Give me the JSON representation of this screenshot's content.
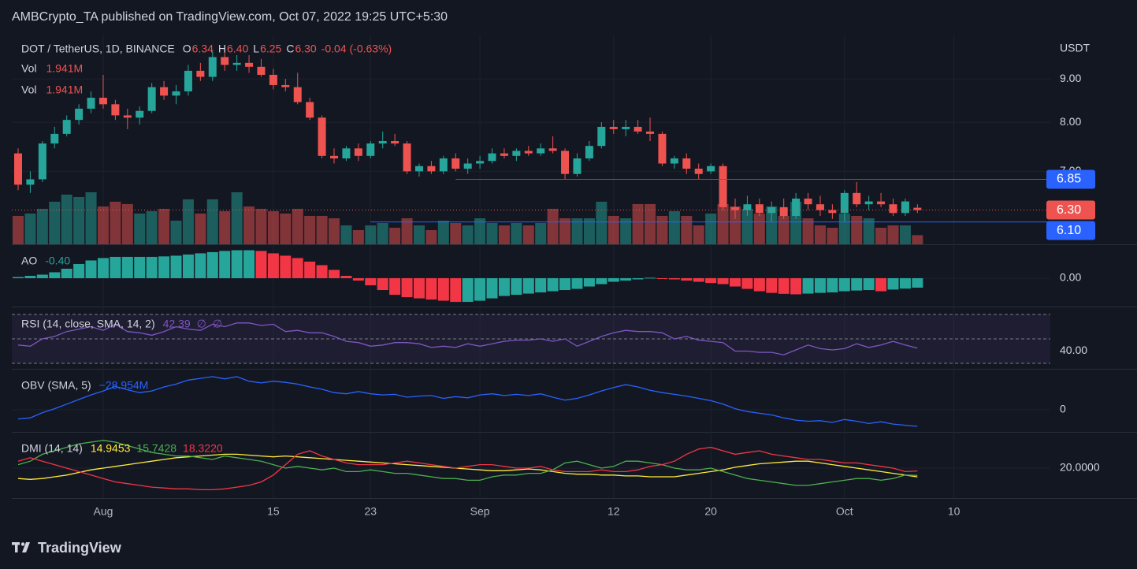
{
  "header": {
    "title": "AMBCrypto_TA published on TradingView.com, Oct 07, 2022 19:25 UTC+5:30"
  },
  "footer": {
    "brand": "TradingView"
  },
  "chart_data": [
    {
      "type": "candlestick",
      "title": "DOT / TetherUS, 1D, BINANCE",
      "legend_keys": [
        "O",
        "H",
        "L",
        "C"
      ],
      "value_labels": {
        "open": "6.34",
        "high": "6.40",
        "low": "6.25",
        "close": "6.30"
      },
      "change": "-0.04 (-0.63%)",
      "unit": "USDT",
      "up_color": "#26a69a",
      "down_color": "#ef5350",
      "log_scale": true,
      "grid": true,
      "ylim": [
        5.74,
        10.02
      ],
      "yticks": [
        {
          "value": 9,
          "label": "9.00"
        },
        {
          "value": 8,
          "label": "8.00"
        },
        {
          "value": 7,
          "label": "7.00"
        }
      ],
      "xlim": [
        "2022-07-25",
        "2022-10-18"
      ],
      "xticks": [
        {
          "value": "2022-08-01",
          "label": "Aug"
        },
        {
          "value": "2022-08-15",
          "label": "15"
        },
        {
          "value": "2022-08-23",
          "label": "23"
        },
        {
          "value": "2022-09-01",
          "label": "Sep"
        },
        {
          "value": "2022-09-12",
          "label": "12"
        },
        {
          "value": "2022-09-20",
          "label": "20"
        },
        {
          "value": "2022-10-01",
          "label": "Oct"
        },
        {
          "value": "2022-10-10",
          "label": "10"
        }
      ],
      "x": [
        "2022-07-25",
        "2022-07-26",
        "2022-07-27",
        "2022-07-28",
        "2022-07-29",
        "2022-07-30",
        "2022-07-31",
        "2022-08-01",
        "2022-08-02",
        "2022-08-03",
        "2022-08-04",
        "2022-08-05",
        "2022-08-06",
        "2022-08-07",
        "2022-08-08",
        "2022-08-09",
        "2022-08-10",
        "2022-08-11",
        "2022-08-12",
        "2022-08-13",
        "2022-08-14",
        "2022-08-15",
        "2022-08-16",
        "2022-08-17",
        "2022-08-18",
        "2022-08-19",
        "2022-08-20",
        "2022-08-21",
        "2022-08-22",
        "2022-08-23",
        "2022-08-24",
        "2022-08-25",
        "2022-08-26",
        "2022-08-27",
        "2022-08-28",
        "2022-08-29",
        "2022-08-30",
        "2022-08-31",
        "2022-09-01",
        "2022-09-02",
        "2022-09-03",
        "2022-09-04",
        "2022-09-05",
        "2022-09-06",
        "2022-09-07",
        "2022-09-08",
        "2022-09-09",
        "2022-09-10",
        "2022-09-11",
        "2022-09-12",
        "2022-09-13",
        "2022-09-14",
        "2022-09-15",
        "2022-09-16",
        "2022-09-17",
        "2022-09-18",
        "2022-09-19",
        "2022-09-20",
        "2022-09-21",
        "2022-09-22",
        "2022-09-23",
        "2022-09-24",
        "2022-09-25",
        "2022-09-26",
        "2022-09-27",
        "2022-09-28",
        "2022-09-29",
        "2022-09-30",
        "2022-10-01",
        "2022-10-02",
        "2022-10-03",
        "2022-10-04",
        "2022-10-05",
        "2022-10-06",
        "2022-10-07"
      ],
      "open": [
        7.35,
        6.75,
        6.85,
        7.55,
        7.75,
        8.05,
        8.3,
        8.55,
        8.4,
        8.15,
        8.1,
        8.25,
        8.8,
        8.6,
        8.7,
        9.2,
        9.05,
        9.55,
        9.35,
        9.4,
        9.3,
        9.1,
        8.85,
        8.8,
        8.45,
        8.1,
        7.3,
        7.25,
        7.45,
        7.3,
        7.55,
        7.6,
        7.55,
        7.0,
        7.1,
        7.0,
        7.25,
        7.05,
        7.15,
        7.2,
        7.35,
        7.3,
        7.4,
        7.35,
        7.45,
        7.4,
        6.95,
        7.25,
        7.5,
        7.9,
        7.85,
        7.9,
        7.8,
        7.75,
        7.15,
        7.25,
        7.05,
        7.0,
        7.1,
        6.35,
        6.3,
        6.4,
        6.25,
        6.35,
        6.2,
        6.5,
        6.4,
        6.3,
        6.25,
        6.6,
        6.4,
        6.45,
        6.4,
        6.25,
        6.34
      ],
      "high": [
        7.45,
        7.0,
        7.6,
        7.9,
        8.15,
        8.4,
        8.7,
        9.1,
        8.5,
        8.3,
        8.35,
        8.9,
        8.95,
        8.85,
        9.35,
        9.4,
        9.7,
        9.75,
        9.6,
        9.6,
        9.5,
        9.25,
        9.0,
        9.15,
        8.55,
        8.15,
        7.45,
        7.5,
        7.55,
        7.6,
        7.8,
        7.75,
        7.6,
        7.15,
        7.2,
        7.3,
        7.35,
        7.25,
        7.3,
        7.45,
        7.45,
        7.45,
        7.5,
        7.55,
        7.7,
        7.45,
        7.35,
        7.6,
        8.0,
        8.05,
        8.05,
        8.05,
        8.1,
        7.8,
        7.3,
        7.35,
        7.15,
        7.15,
        7.15,
        6.5,
        6.55,
        6.5,
        6.45,
        6.5,
        6.6,
        6.6,
        6.55,
        6.4,
        6.65,
        6.8,
        6.55,
        6.6,
        6.5,
        6.5,
        6.4
      ],
      "low": [
        6.65,
        6.6,
        6.8,
        7.45,
        7.7,
        7.95,
        8.2,
        8.3,
        8.05,
        7.85,
        7.95,
        8.2,
        8.5,
        8.4,
        8.6,
        8.95,
        8.95,
        9.2,
        9.2,
        9.15,
        9.05,
        8.75,
        8.7,
        8.4,
        8.05,
        7.25,
        7.15,
        7.2,
        7.2,
        7.25,
        7.45,
        7.5,
        6.95,
        6.9,
        6.95,
        6.95,
        7.0,
        6.95,
        7.05,
        7.15,
        7.25,
        7.2,
        7.3,
        7.3,
        7.35,
        6.85,
        6.9,
        7.2,
        7.45,
        7.75,
        7.7,
        7.75,
        7.6,
        7.1,
        7.05,
        6.95,
        6.85,
        6.95,
        6.3,
        6.15,
        6.2,
        6.2,
        6.1,
        6.15,
        6.15,
        6.3,
        6.2,
        6.15,
        6.1,
        6.35,
        6.3,
        6.35,
        6.2,
        6.2,
        6.25
      ],
      "close": [
        6.75,
        6.85,
        7.55,
        7.75,
        8.05,
        8.3,
        8.55,
        8.4,
        8.15,
        8.1,
        8.25,
        8.8,
        8.6,
        8.7,
        9.2,
        9.05,
        9.55,
        9.35,
        9.4,
        9.3,
        9.1,
        8.85,
        8.8,
        8.45,
        8.1,
        7.3,
        7.25,
        7.45,
        7.3,
        7.55,
        7.6,
        7.55,
        7.0,
        7.1,
        7.0,
        7.25,
        7.05,
        7.15,
        7.2,
        7.35,
        7.3,
        7.4,
        7.35,
        7.45,
        7.4,
        6.95,
        7.25,
        7.5,
        7.9,
        7.85,
        7.9,
        7.8,
        7.75,
        7.15,
        7.25,
        7.05,
        6.95,
        7.1,
        6.35,
        6.3,
        6.4,
        6.25,
        6.35,
        6.2,
        6.5,
        6.4,
        6.3,
        6.25,
        6.6,
        6.4,
        6.45,
        6.4,
        6.25,
        6.45,
        6.3
      ],
      "hlines": [
        {
          "value": 6.85,
          "label": "6.85",
          "from": "2022-08-30",
          "color": "#2962ff"
        },
        {
          "value": 6.1,
          "label": "6.10",
          "from": "2022-08-23",
          "color": "#2962ff"
        }
      ],
      "volume": {
        "name": "Vol",
        "value_label": "1.941M",
        "ylim": [
          0,
          43.3
        ],
        "values": [
          6.0,
          6.5,
          7.5,
          9.0,
          10.5,
          10.0,
          11.0,
          8.0,
          9.0,
          8.5,
          6.5,
          7.0,
          7.5,
          5.0,
          9.5,
          6.5,
          9.5,
          7.0,
          11.0,
          8.0,
          7.5,
          7.0,
          6.5,
          7.5,
          6.0,
          6.0,
          5.5,
          4.0,
          3.0,
          4.0,
          4.5,
          3.5,
          5.5,
          4.0,
          3.0,
          5.0,
          4.5,
          4.0,
          5.5,
          4.5,
          4.0,
          4.5,
          4.0,
          4.5,
          7.5,
          5.5,
          5.5,
          5.5,
          9.0,
          6.0,
          5.5,
          8.5,
          8.5,
          6.0,
          7.0,
          6.0,
          4.0,
          6.5,
          8.5,
          8.0,
          7.5,
          6.5,
          8.0,
          6.0,
          9.0,
          5.5,
          4.0,
          3.5,
          6.5,
          6.0,
          5.5,
          3.5,
          4.0,
          4.0,
          1.941
        ]
      }
    },
    {
      "type": "bar",
      "title": "AO",
      "value_label": "-0.40",
      "up_color": "#26a69a",
      "down_color": "#f23645",
      "ylim": [
        -1.23,
        1.43
      ],
      "yticks": [
        {
          "value": 0,
          "label": "0.00"
        }
      ],
      "values": [
        0.05,
        0.1,
        0.15,
        0.25,
        0.4,
        0.6,
        0.75,
        0.85,
        0.9,
        0.9,
        0.9,
        0.9,
        0.92,
        0.95,
        1.0,
        1.05,
        1.1,
        1.15,
        1.18,
        1.18,
        1.15,
        1.05,
        0.95,
        0.85,
        0.7,
        0.55,
        0.35,
        0.1,
        -0.1,
        -0.3,
        -0.5,
        -0.7,
        -0.8,
        -0.85,
        -0.9,
        -0.95,
        -1.0,
        -1.0,
        -0.95,
        -0.85,
        -0.75,
        -0.7,
        -0.65,
        -0.6,
        -0.55,
        -0.5,
        -0.45,
        -0.35,
        -0.25,
        -0.15,
        -0.1,
        -0.05,
        0.02,
        0.0,
        -0.05,
        -0.1,
        -0.15,
        -0.2,
        -0.25,
        -0.35,
        -0.45,
        -0.55,
        -0.62,
        -0.66,
        -0.68,
        -0.65,
        -0.62,
        -0.6,
        -0.55,
        -0.52,
        -0.5,
        -0.55,
        -0.48,
        -0.44,
        -0.4
      ]
    },
    {
      "type": "line",
      "title": "RSI (14, close, SMA, 14, 2)",
      "extra_labels": [
        "∅",
        "∅"
      ],
      "bands": [
        70,
        50,
        30
      ],
      "band_color": "#7e57c2",
      "ylim": [
        25.5,
        75.8
      ],
      "yticks": [
        {
          "value": 40,
          "label": "40.00"
        }
      ],
      "series": [
        {
          "color": "#7e57c2",
          "value_label": "42.39",
          "values": [
            45,
            44,
            50,
            52,
            56,
            58,
            60,
            57,
            62,
            56,
            55,
            53,
            56,
            60,
            58,
            57,
            62,
            60,
            63,
            63,
            61,
            62,
            56,
            57,
            55,
            55,
            52,
            48,
            47,
            44,
            45,
            47,
            47,
            46,
            43,
            44,
            43,
            46,
            44,
            46,
            48,
            49,
            49,
            50,
            48,
            50,
            44,
            48,
            52,
            55,
            57,
            56,
            56,
            55,
            50,
            52,
            49,
            48,
            47,
            40,
            40,
            39,
            39,
            37,
            41,
            45,
            42,
            41,
            42,
            46,
            43,
            45,
            48,
            45,
            42.39
          ]
        }
      ]
    },
    {
      "type": "line",
      "title": "OBV (SMA, 5)",
      "ylim": [
        -38.6,
        71.7
      ],
      "yticks": [
        0
      ],
      "series": [
        {
          "color": "#2962ff",
          "value_label": "−28.954M",
          "values": [
            -16,
            -14,
            -5,
            2,
            10,
            18,
            26,
            33,
            41,
            35,
            30,
            33,
            40,
            45,
            52,
            55,
            58,
            54,
            58,
            50,
            47,
            50,
            48,
            45,
            40,
            36,
            30,
            28,
            32,
            28,
            26,
            27,
            22,
            24,
            25,
            20,
            23,
            21,
            26,
            28,
            25,
            27,
            25,
            28,
            22,
            17,
            20,
            26,
            33,
            39,
            44,
            40,
            34,
            30,
            27,
            24,
            20,
            16,
            10,
            2,
            -3,
            -6,
            -9,
            -14,
            -18,
            -20,
            -19,
            -22,
            -17,
            -20,
            -24,
            -21,
            -25,
            -27,
            -28.954
          ]
        }
      ]
    },
    {
      "type": "line",
      "title": "DMI (14, 14)",
      "ylim": [
        2.7,
        40.9
      ],
      "yticks": [
        {
          "value": 20,
          "label": "20.0000"
        }
      ],
      "series": [
        {
          "color": "#ffeb3b",
          "value_label": "14.9453",
          "values": [
            14,
            13.5,
            14,
            15,
            16,
            17.5,
            19,
            20,
            21,
            22,
            23,
            24,
            25,
            26,
            26.5,
            27,
            27.5,
            28,
            28,
            27.5,
            27,
            26.5,
            27,
            26.5,
            26,
            25.5,
            25,
            24.5,
            24,
            23.5,
            23,
            22.5,
            22,
            21.5,
            21,
            20.5,
            20,
            19.5,
            19,
            18.5,
            18.5,
            19,
            19.5,
            19,
            18,
            17,
            16.5,
            16.5,
            16,
            16,
            15.5,
            15.5,
            15,
            15,
            15,
            16,
            17,
            18,
            19,
            20.5,
            21.5,
            22.5,
            23,
            23.5,
            24,
            24,
            23,
            22,
            21,
            20,
            19,
            18,
            17,
            16,
            14.9453
          ]
        },
        {
          "color": "#4caf50",
          "value_label": "15.7428",
          "values": [
            22,
            24,
            28,
            30,
            32,
            34,
            35,
            36,
            35,
            33,
            31,
            29,
            28,
            27,
            27,
            26,
            25,
            27,
            26,
            25,
            24,
            22,
            20,
            21,
            20,
            19,
            20,
            18,
            18,
            19,
            18,
            17,
            17,
            16,
            15,
            14,
            14,
            13,
            13,
            15,
            16,
            16,
            17,
            17,
            19,
            23,
            24,
            22,
            20,
            21,
            24,
            24,
            23,
            22,
            20,
            19,
            19,
            20,
            18,
            16,
            14,
            13,
            12,
            11,
            10,
            10,
            11,
            12,
            13,
            14,
            14,
            13,
            14,
            16,
            15.7428
          ]
        },
        {
          "color": "#f23645",
          "value_label": "18.3220",
          "values": [
            24,
            26,
            24,
            22,
            20,
            18,
            16,
            14,
            12,
            11,
            10,
            9,
            8.5,
            8,
            8,
            7.5,
            7.5,
            8,
            9,
            10,
            12,
            16,
            22,
            28,
            30,
            27,
            25,
            23,
            22,
            22,
            22,
            23,
            24,
            23,
            22,
            21,
            20,
            21,
            22,
            22,
            21,
            20,
            20,
            21,
            19,
            18,
            18,
            18,
            19,
            18,
            18,
            19,
            21,
            22,
            24,
            28,
            31,
            32,
            30,
            28,
            29,
            30,
            28,
            27,
            26,
            25,
            25,
            24,
            23,
            23,
            22,
            21,
            20,
            18,
            18.322
          ]
        }
      ]
    }
  ]
}
